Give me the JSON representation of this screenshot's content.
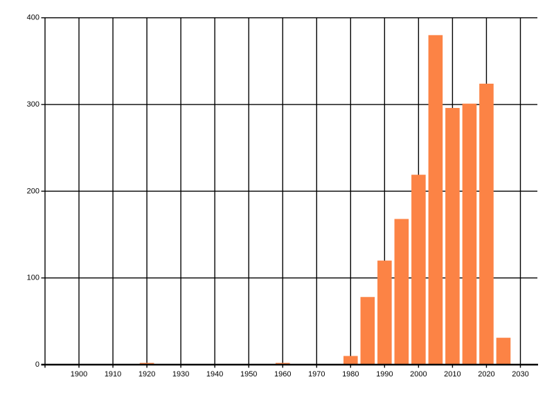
{
  "page": {
    "background_color": "#ffffff",
    "title": ""
  },
  "chart_data": {
    "type": "bar",
    "title": "",
    "subtitle": "",
    "xlabel": "",
    "ylabel": "",
    "legend": null,
    "grid": true,
    "bin_width_years": 5,
    "x": [
      1920,
      1960,
      1980,
      1985,
      1990,
      1995,
      2000,
      2005,
      2010,
      2015,
      2020,
      2025
    ],
    "values": [
      2,
      2,
      10,
      78,
      120,
      168,
      219,
      380,
      296,
      301,
      324,
      31
    ],
    "xlim": [
      1890,
      2035
    ],
    "ylim": [
      0,
      400
    ],
    "x_gridline_years": [
      1890,
      1900,
      1910,
      1920,
      1930,
      1940,
      1950,
      1960,
      1970,
      1980,
      1990,
      2000,
      2010,
      2020,
      2030
    ],
    "x_ticks": [
      1900,
      1910,
      1920,
      1930,
      1940,
      1950,
      1960,
      1970,
      1980,
      1990,
      2000,
      2010,
      2020,
      2030
    ],
    "x_tick_labels": [
      "1900",
      "1910",
      "1920",
      "1930",
      "1940",
      "1950",
      "1960",
      "1970",
      "1980",
      "1990",
      "2000",
      "2010",
      "2020",
      "2030"
    ],
    "y_ticks": [
      0,
      100,
      200,
      300,
      400
    ],
    "y_tick_labels": [
      "0",
      "100",
      "200",
      "300",
      "400"
    ],
    "colors": {
      "bar": "#FC8345",
      "gridline": "#000000",
      "axis": "#000000",
      "tick_label": "#000000",
      "background": "#ffffff"
    },
    "bar_width_years": 4.2,
    "legend_position": "none"
  }
}
